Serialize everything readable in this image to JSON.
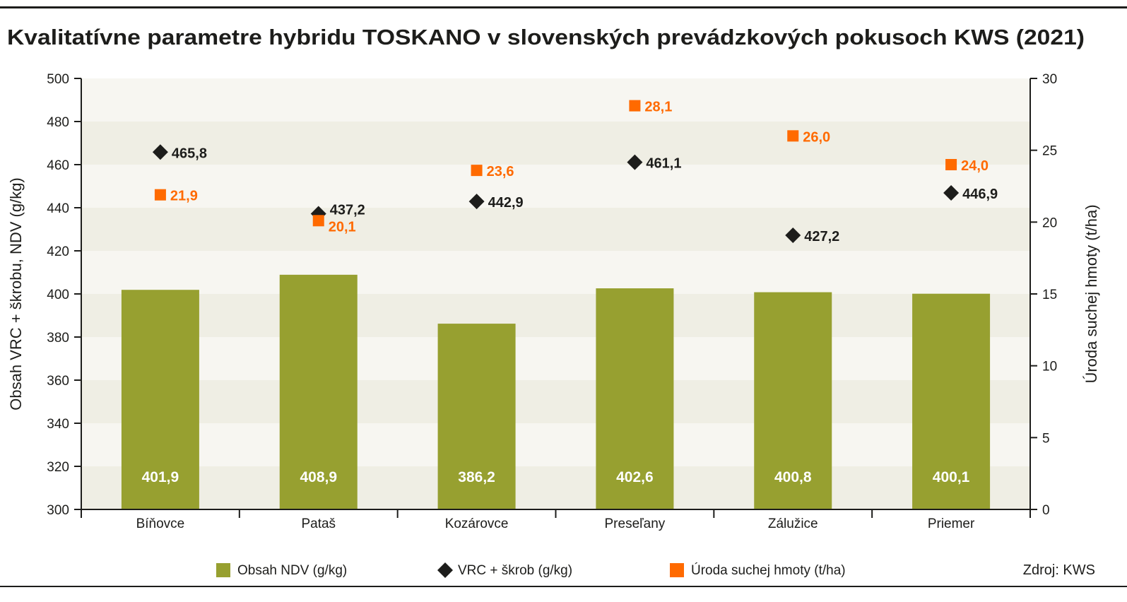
{
  "chart_data": {
    "type": "bar",
    "title": "Kvalitatívne parametre hybridu TOSKANO v slovenských prevádzkových pokusoch KWS (2021)",
    "categories": [
      "Bíňovce",
      "Pataš",
      "Kozárovce",
      "Preseľany",
      "Zálužice",
      "Priemer"
    ],
    "ylabel": "Obsah VRC + škrobu, NDV (g/kg)",
    "y2label": "Úroda suchej hmoty (t/ha)",
    "ylim": [
      300,
      500
    ],
    "y2lim": [
      0,
      30
    ],
    "yticks": [
      300,
      320,
      340,
      360,
      380,
      400,
      420,
      440,
      460,
      480,
      500
    ],
    "y2ticks": [
      0,
      5,
      10,
      15,
      20,
      25,
      30
    ],
    "series": [
      {
        "name": "Obsah NDV (g/kg)",
        "type": "bar",
        "axis": "left",
        "color": "#97a030",
        "values": [
          401.9,
          408.9,
          386.2,
          402.6,
          400.8,
          400.1
        ],
        "labels": [
          "401,9",
          "408,9",
          "386,2",
          "402,6",
          "400,8",
          "400,1"
        ]
      },
      {
        "name": "VRC + škrob (g/kg)",
        "type": "scatter",
        "marker": "diamond",
        "axis": "left",
        "color": "#1d1d1b",
        "values": [
          465.8,
          437.2,
          442.9,
          461.1,
          427.2,
          446.9
        ],
        "labels": [
          "465,8",
          "437,2",
          "442,9",
          "461,1",
          "427,2",
          "446,9"
        ]
      },
      {
        "name": "Úroda suchej hmoty (t/ha)",
        "type": "scatter",
        "marker": "square",
        "axis": "right",
        "color": "#ff6a00",
        "values": [
          21.9,
          20.1,
          23.6,
          28.1,
          26.0,
          24.0
        ],
        "labels": [
          "21,9",
          "20,1",
          "23,6",
          "28,1",
          "26,0",
          "24,0"
        ]
      }
    ],
    "legend": "bottom",
    "source": "Zdroj: KWS"
  }
}
